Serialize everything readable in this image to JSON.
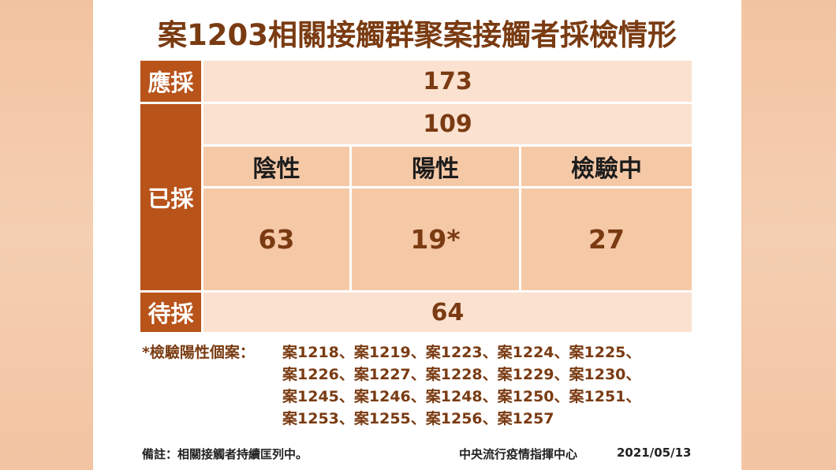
{
  "title": "案1203相關接觸群聚案接觸者採檢情形",
  "rows": {
    "should_label": "應採",
    "should_value": "173",
    "done_label": "已採",
    "done_value": "109",
    "negative_label": "陰性",
    "positive_label": "陽性",
    "testing_label": "檢驗中",
    "negative_value": "63",
    "positive_value": "19*",
    "testing_value": "27",
    "pending_label": "待採",
    "pending_value": "64"
  },
  "note": {
    "prefix": "*檢驗陽性個案：",
    "lines": [
      "案1218、案1219、案1223、案1224、案1225、",
      "案1226、案1227、案1228、案1229、案1230、",
      "案1245、案1246、案1248、案1250、案1251、",
      "案1253、案1255、案1256、案1257"
    ]
  },
  "footer": {
    "remark": "備註：相關接觸者持續匡列中。",
    "source": "中央流行疫情指揮中心",
    "date": "2021/05/13"
  },
  "colors": {
    "label_bg": "#b8531a",
    "light_bg": "#fbe1cf",
    "mid_bg": "#f5c8a6",
    "text_brown": "#7a3b12"
  }
}
